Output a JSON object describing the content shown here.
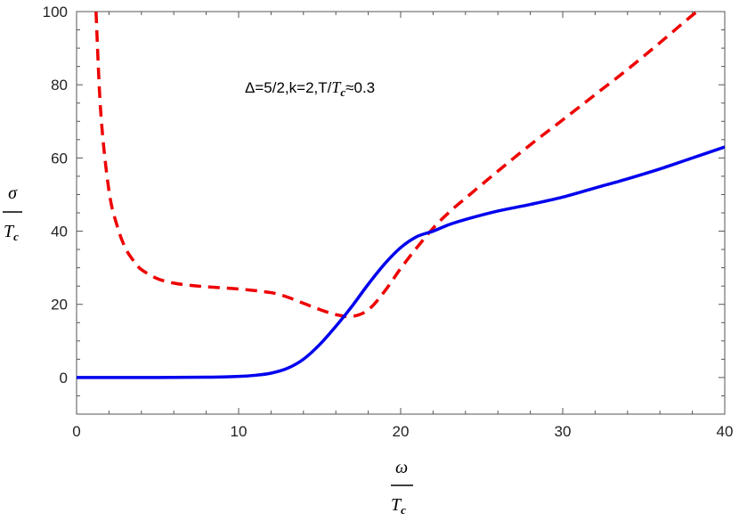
{
  "chart_data": {
    "type": "line",
    "annotation": "Δ=5/2,k=2,T/T_c≈0.3",
    "annotation_parts": {
      "prefix": "Δ=5/2,k=2,T/",
      "tc_sym": "T",
      "tc_sub": "c",
      "suffix": "≈0.3"
    },
    "xlabel": {
      "num": "ω",
      "den_sym": "T",
      "den_sub": "c"
    },
    "ylabel": {
      "num": "σ",
      "den_sym": "T",
      "den_sub": "c"
    },
    "xlim": [
      0,
      40
    ],
    "ylim": [
      -10,
      100
    ],
    "x_ticks": [
      0,
      10,
      20,
      30,
      40
    ],
    "y_ticks": [
      0,
      20,
      40,
      60,
      80,
      100
    ],
    "grid": false,
    "series": [
      {
        "style": "solid",
        "color": "#0000ee",
        "x": [
          0,
          2,
          4,
          6,
          8,
          10,
          11,
          12,
          13,
          14,
          15,
          16,
          17,
          18,
          19,
          20,
          21,
          22,
          23,
          24,
          26,
          28,
          30,
          32,
          34,
          36,
          38,
          40
        ],
        "y": [
          0,
          0,
          0,
          0.05,
          0.1,
          0.3,
          0.6,
          1.2,
          2.5,
          5,
          9,
          14,
          19.5,
          25.5,
          31,
          35.5,
          38.5,
          40,
          41.8,
          43.2,
          45.5,
          47.3,
          49.3,
          51.8,
          54.3,
          57,
          60,
          63
        ]
      },
      {
        "style": "dashed",
        "color": "#ee0000",
        "x": [
          1.2,
          1.5,
          2,
          2.5,
          3,
          3.5,
          4,
          5,
          6,
          7,
          8,
          10,
          12,
          13,
          14,
          15,
          16,
          17,
          18,
          19,
          20,
          21,
          22,
          23,
          24,
          26,
          28,
          30,
          32,
          34,
          36,
          38,
          38.4
        ],
        "y": [
          100,
          72,
          51,
          41.5,
          35.5,
          32,
          29.5,
          27,
          25.8,
          25.2,
          24.8,
          24.2,
          23.2,
          22,
          20.3,
          18.6,
          17.2,
          16.7,
          18.5,
          23.5,
          29.8,
          35.5,
          40.8,
          45.2,
          49,
          56.4,
          63.6,
          70.4,
          77.3,
          84.2,
          91.5,
          99,
          100
        ]
      }
    ]
  }
}
